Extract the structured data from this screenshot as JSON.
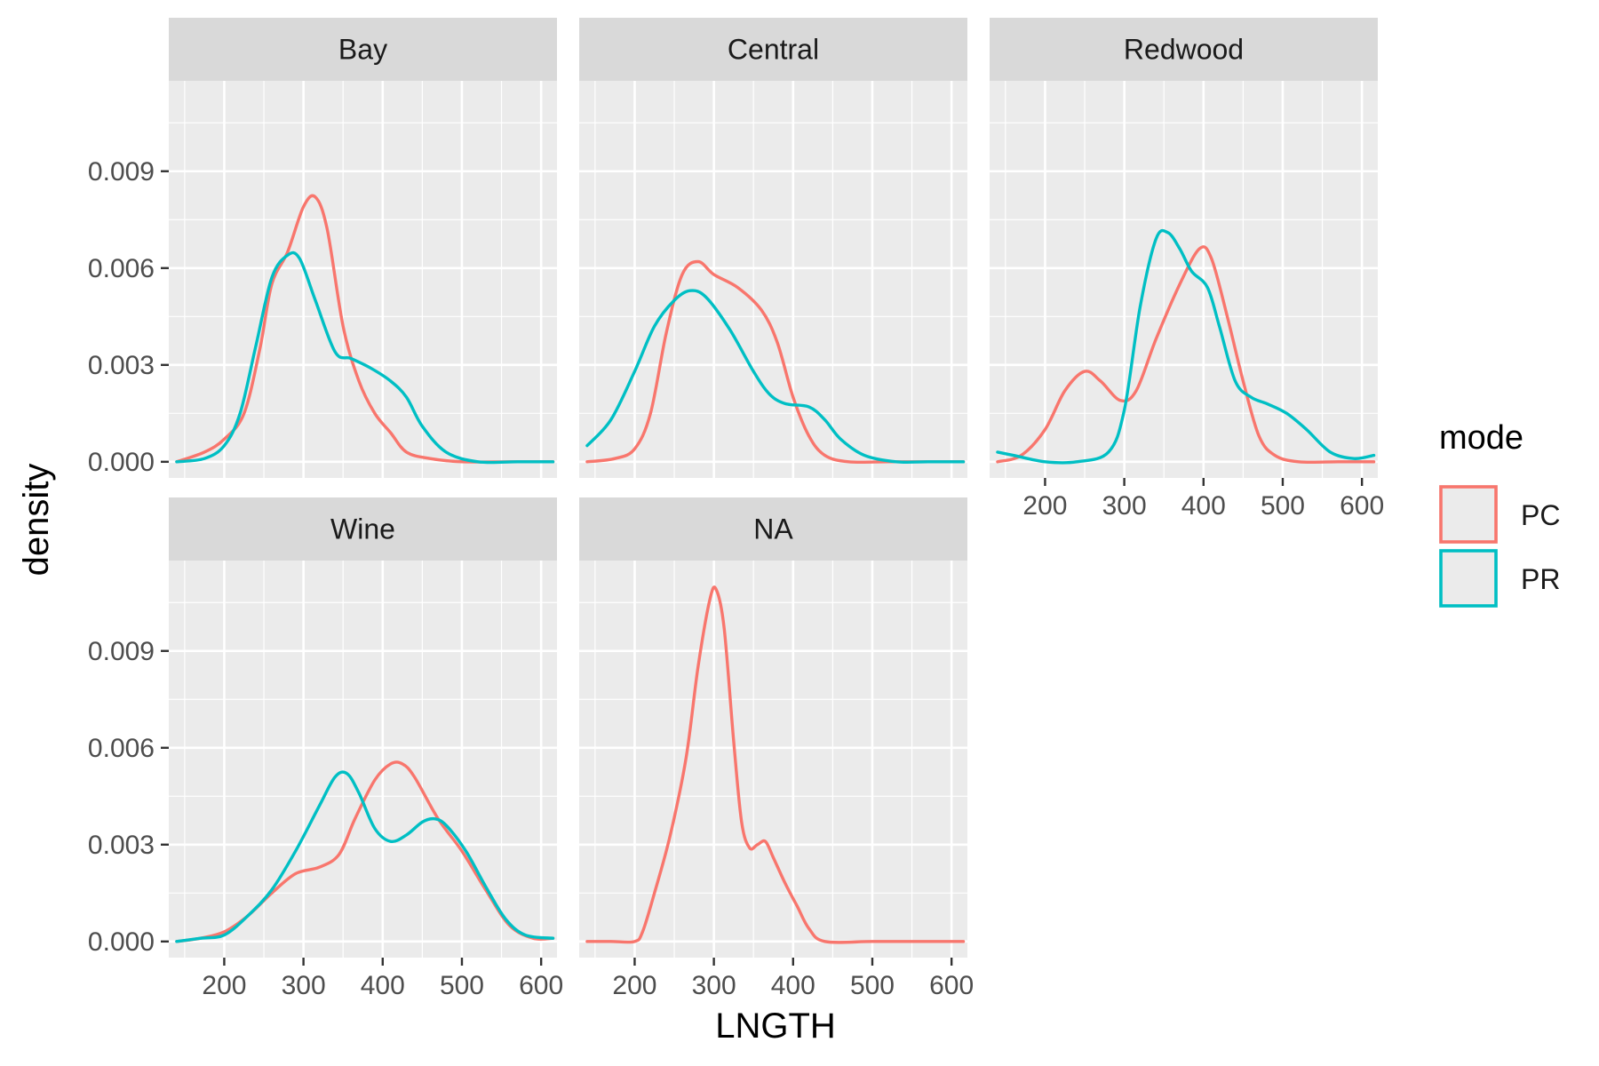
{
  "chart_data": {
    "type": "line",
    "subtype": "density",
    "xlabel": "LNGTH",
    "ylabel": "density",
    "xlim": [
      130,
      620
    ],
    "ylim": [
      -0.0005,
      0.0118
    ],
    "x_ticks": [
      200,
      300,
      400,
      500,
      600
    ],
    "y_ticks": [
      0.0,
      0.003,
      0.006,
      0.009
    ],
    "y_tick_labels": [
      "0.000",
      "0.003",
      "0.006",
      "0.009"
    ],
    "grid": true,
    "legend": {
      "title": "mode",
      "position": "right",
      "entries": [
        {
          "name": "PC",
          "color": "#F8766D"
        },
        {
          "name": "PR",
          "color": "#00BFC4"
        }
      ]
    },
    "panels": [
      {
        "name": "Bay",
        "series": [
          {
            "name": "PC",
            "color": "#F8766D",
            "points": [
              [
                140,
                0.0
              ],
              [
                175,
                0.0003
              ],
              [
                200,
                0.0007
              ],
              [
                225,
                0.0015
              ],
              [
                245,
                0.0035
              ],
              [
                260,
                0.0055
              ],
              [
                280,
                0.0065
              ],
              [
                300,
                0.0079
              ],
              [
                315,
                0.0082
              ],
              [
                330,
                0.0072
              ],
              [
                350,
                0.0042
              ],
              [
                370,
                0.0025
              ],
              [
                390,
                0.0015
              ],
              [
                410,
                0.0009
              ],
              [
                430,
                0.0003
              ],
              [
                460,
                0.0001
              ],
              [
                500,
                0.0
              ],
              [
                560,
                0.0
              ],
              [
                615,
                0.0
              ]
            ]
          },
          {
            "name": "PR",
            "color": "#00BFC4",
            "points": [
              [
                140,
                0.0
              ],
              [
                175,
                0.0001
              ],
              [
                200,
                0.0005
              ],
              [
                220,
                0.0015
              ],
              [
                240,
                0.0036
              ],
              [
                260,
                0.0057
              ],
              [
                280,
                0.0064
              ],
              [
                295,
                0.0063
              ],
              [
                315,
                0.005
              ],
              [
                340,
                0.0034
              ],
              [
                360,
                0.0032
              ],
              [
                385,
                0.0029
              ],
              [
                410,
                0.0025
              ],
              [
                430,
                0.002
              ],
              [
                450,
                0.0011
              ],
              [
                480,
                0.0003
              ],
              [
                520,
                0.0
              ],
              [
                570,
                0.0
              ],
              [
                615,
                0.0
              ]
            ]
          }
        ]
      },
      {
        "name": "Central",
        "series": [
          {
            "name": "PC",
            "color": "#F8766D",
            "points": [
              [
                140,
                0.0
              ],
              [
                175,
                0.0001
              ],
              [
                200,
                0.0004
              ],
              [
                220,
                0.0015
              ],
              [
                240,
                0.004
              ],
              [
                260,
                0.0058
              ],
              [
                280,
                0.0062
              ],
              [
                300,
                0.0058
              ],
              [
                330,
                0.0054
              ],
              [
                360,
                0.0047
              ],
              [
                380,
                0.0037
              ],
              [
                400,
                0.002
              ],
              [
                420,
                0.0008
              ],
              [
                440,
                0.0002
              ],
              [
                470,
                0.0
              ],
              [
                520,
                0.0
              ],
              [
                570,
                0.0
              ],
              [
                615,
                0.0
              ]
            ]
          },
          {
            "name": "PR",
            "color": "#00BFC4",
            "points": [
              [
                140,
                0.0005
              ],
              [
                170,
                0.0013
              ],
              [
                200,
                0.0028
              ],
              [
                225,
                0.0042
              ],
              [
                250,
                0.005
              ],
              [
                270,
                0.0053
              ],
              [
                290,
                0.0051
              ],
              [
                320,
                0.0041
              ],
              [
                350,
                0.0028
              ],
              [
                370,
                0.0021
              ],
              [
                390,
                0.0018
              ],
              [
                420,
                0.0017
              ],
              [
                440,
                0.0013
              ],
              [
                460,
                0.0007
              ],
              [
                490,
                0.0002
              ],
              [
                530,
                0.0
              ],
              [
                570,
                0.0
              ],
              [
                615,
                0.0
              ]
            ]
          }
        ]
      },
      {
        "name": "Redwood",
        "series": [
          {
            "name": "PC",
            "color": "#F8766D",
            "points": [
              [
                140,
                0.0
              ],
              [
                170,
                0.0002
              ],
              [
                200,
                0.001
              ],
              [
                225,
                0.0022
              ],
              [
                250,
                0.0028
              ],
              [
                270,
                0.0025
              ],
              [
                295,
                0.0019
              ],
              [
                315,
                0.0022
              ],
              [
                340,
                0.0038
              ],
              [
                370,
                0.0055
              ],
              [
                395,
                0.0066
              ],
              [
                410,
                0.0063
              ],
              [
                430,
                0.0045
              ],
              [
                450,
                0.0025
              ],
              [
                470,
                0.0008
              ],
              [
                490,
                0.0002
              ],
              [
                520,
                0.0
              ],
              [
                570,
                0.0
              ],
              [
                615,
                0.0
              ]
            ]
          },
          {
            "name": "PR",
            "color": "#00BFC4",
            "points": [
              [
                140,
                0.0003
              ],
              [
                160,
                0.0002
              ],
              [
                200,
                0.0
              ],
              [
                240,
                0.0
              ],
              [
                280,
                0.0003
              ],
              [
                300,
                0.0016
              ],
              [
                320,
                0.0048
              ],
              [
                340,
                0.0069
              ],
              [
                355,
                0.0071
              ],
              [
                370,
                0.0066
              ],
              [
                385,
                0.0059
              ],
              [
                405,
                0.0054
              ],
              [
                420,
                0.0042
              ],
              [
                440,
                0.0025
              ],
              [
                460,
                0.002
              ],
              [
                480,
                0.0018
              ],
              [
                505,
                0.0015
              ],
              [
                530,
                0.001
              ],
              [
                560,
                0.0003
              ],
              [
                590,
                0.0001
              ],
              [
                615,
                0.0002
              ]
            ]
          }
        ]
      },
      {
        "name": "Wine",
        "series": [
          {
            "name": "PC",
            "color": "#F8766D",
            "points": [
              [
                140,
                0.0
              ],
              [
                170,
                0.0001
              ],
              [
                200,
                0.0003
              ],
              [
                230,
                0.0008
              ],
              [
                260,
                0.0015
              ],
              [
                290,
                0.0021
              ],
              [
                320,
                0.0023
              ],
              [
                345,
                0.0027
              ],
              [
                365,
                0.0038
              ],
              [
                390,
                0.005
              ],
              [
                410,
                0.0055
              ],
              [
                425,
                0.0055
              ],
              [
                440,
                0.0051
              ],
              [
                470,
                0.0038
              ],
              [
                500,
                0.0028
              ],
              [
                530,
                0.0016
              ],
              [
                560,
                0.0005
              ],
              [
                590,
                0.0001
              ],
              [
                615,
                0.0001
              ]
            ]
          },
          {
            "name": "PR",
            "color": "#00BFC4",
            "points": [
              [
                140,
                0.0
              ],
              [
                170,
                0.0001
              ],
              [
                200,
                0.0002
              ],
              [
                230,
                0.0008
              ],
              [
                260,
                0.0016
              ],
              [
                290,
                0.0028
              ],
              [
                320,
                0.0042
              ],
              [
                340,
                0.0051
              ],
              [
                355,
                0.0052
              ],
              [
                370,
                0.0046
              ],
              [
                390,
                0.0035
              ],
              [
                410,
                0.0031
              ],
              [
                430,
                0.0033
              ],
              [
                450,
                0.0037
              ],
              [
                465,
                0.0038
              ],
              [
                480,
                0.0036
              ],
              [
                505,
                0.0028
              ],
              [
                530,
                0.0017
              ],
              [
                555,
                0.0007
              ],
              [
                580,
                0.0002
              ],
              [
                615,
                0.0001
              ]
            ]
          }
        ]
      },
      {
        "name": "NA",
        "series": [
          {
            "name": "PC",
            "color": "#F8766D",
            "points": [
              [
                140,
                0.0
              ],
              [
                170,
                0.0
              ],
              [
                200,
                0.0
              ],
              [
                210,
                0.0003
              ],
              [
                225,
                0.0015
              ],
              [
                245,
                0.0033
              ],
              [
                265,
                0.0057
              ],
              [
                280,
                0.0085
              ],
              [
                295,
                0.0106
              ],
              [
                303,
                0.0109
              ],
              [
                313,
                0.0097
              ],
              [
                325,
                0.0062
              ],
              [
                335,
                0.0037
              ],
              [
                345,
                0.0029
              ],
              [
                355,
                0.003
              ],
              [
                365,
                0.0031
              ],
              [
                375,
                0.0026
              ],
              [
                390,
                0.0018
              ],
              [
                405,
                0.0011
              ],
              [
                420,
                0.0004
              ],
              [
                440,
                0.0
              ],
              [
                500,
                0.0
              ],
              [
                560,
                0.0
              ],
              [
                615,
                0.0
              ]
            ]
          }
        ]
      }
    ]
  }
}
